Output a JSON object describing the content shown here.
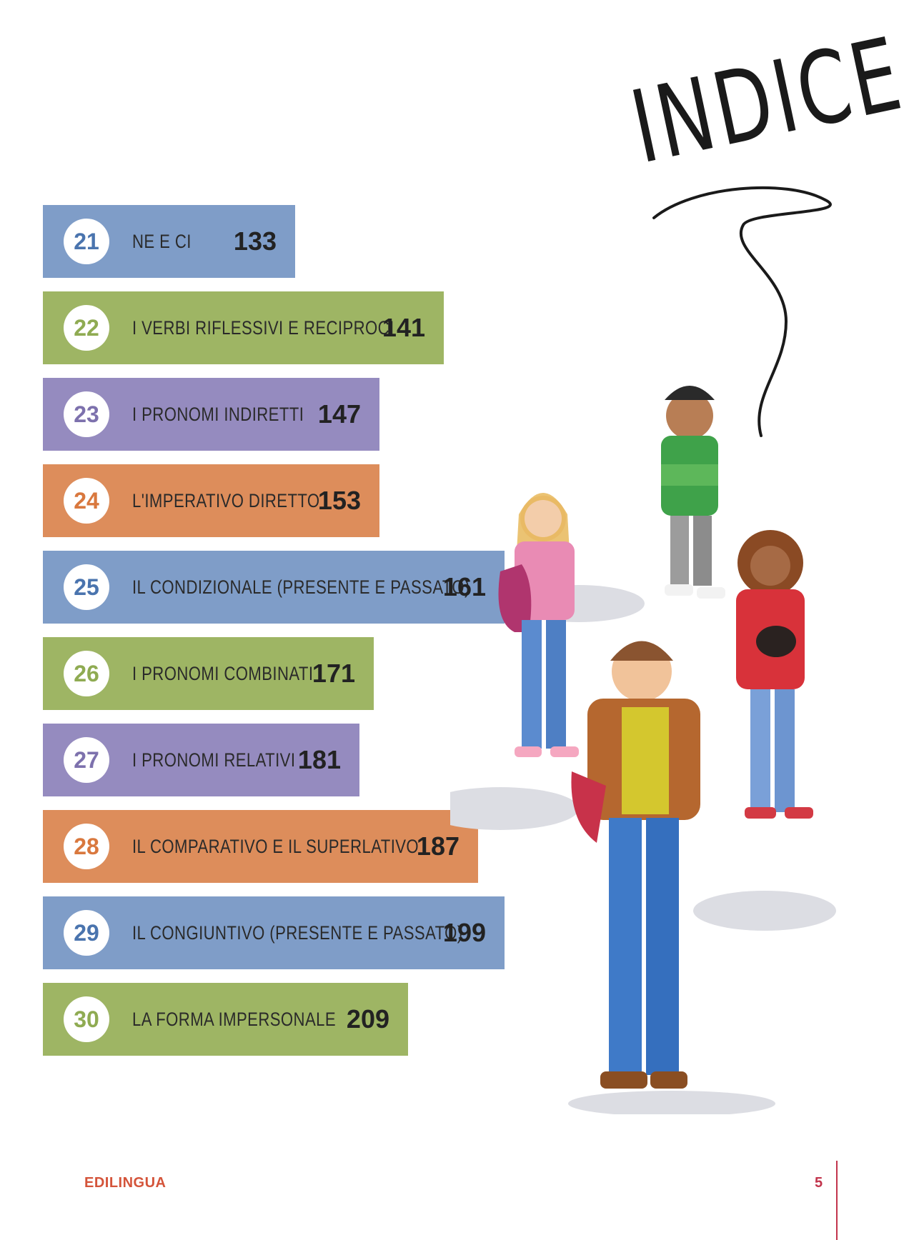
{
  "title": "INDICE",
  "toc": [
    {
      "number": "21",
      "label": "NE E CI",
      "page": "133",
      "color": "blue"
    },
    {
      "number": "22",
      "label": "I VERBI RIFLESSIVI E RECIPROCI",
      "page": "141",
      "color": "green"
    },
    {
      "number": "23",
      "label": "I PRONOMI INDIRETTI",
      "page": "147",
      "color": "purple"
    },
    {
      "number": "24",
      "label": "L'IMPERATIVO DIRETTO",
      "page": "153",
      "color": "orange"
    },
    {
      "number": "25",
      "label": "IL CONDIZIONALE (PRESENTE E PASSATO)",
      "page": "161",
      "color": "blue"
    },
    {
      "number": "26",
      "label": "I PRONOMI COMBINATI",
      "page": "171",
      "color": "green"
    },
    {
      "number": "27",
      "label": "I PRONOMI RELATIVI",
      "page": "181",
      "color": "purple"
    },
    {
      "number": "28",
      "label": "IL COMPARATIVO E IL SUPERLATIVO",
      "page": "187",
      "color": "orange"
    },
    {
      "number": "29",
      "label": "IL CONGIUNTIVO (PRESENTE E PASSATO)",
      "page": "199",
      "color": "blue"
    },
    {
      "number": "30",
      "label": "LA FORMA IMPERSONALE",
      "page": "209",
      "color": "green"
    }
  ],
  "footer": {
    "publisher": "EDILINGUA",
    "page_number": "5"
  },
  "colors": {
    "blue": "#7f9dc8",
    "green": "#9eb564",
    "purple": "#958bbf",
    "orange": "#dd8d5b",
    "footer": "#c2344c"
  }
}
